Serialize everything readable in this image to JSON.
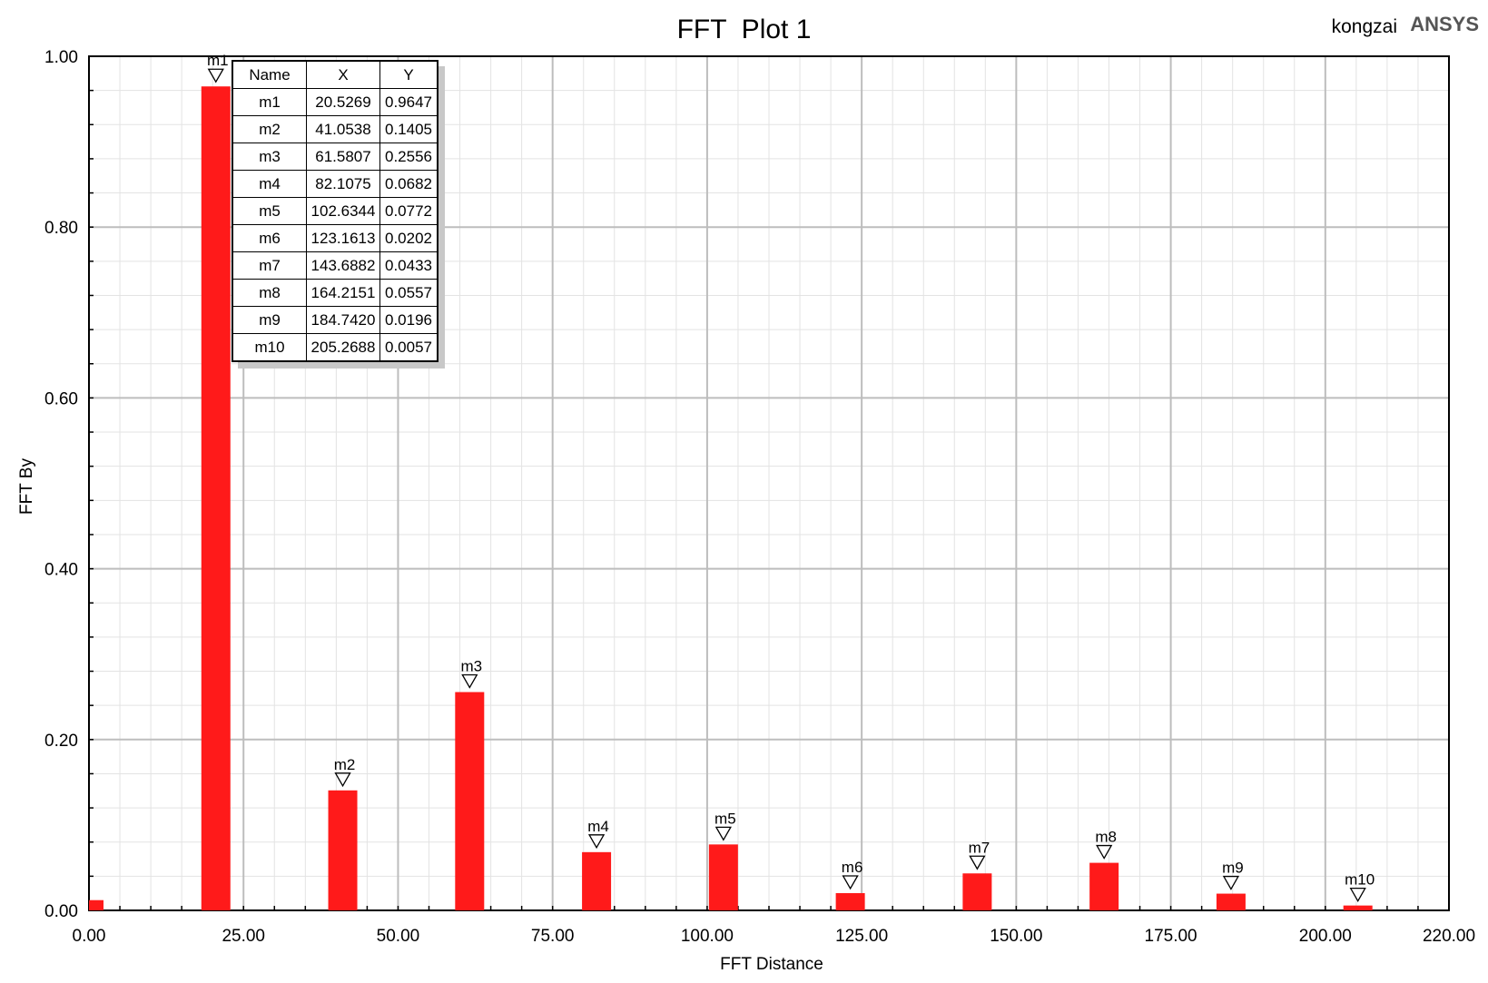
{
  "header": {
    "title": "FFT  Plot 1",
    "user": "kongzai",
    "brand": "ANSYS"
  },
  "colors": {
    "bar": "#ff1a1a",
    "grid_major": "#bdbdbd",
    "grid_minor": "#e3e3e3"
  },
  "marker_table": {
    "headers": [
      "Name",
      "X",
      "Y"
    ],
    "rows": [
      [
        "m1",
        "20.5269",
        "0.9647"
      ],
      [
        "m2",
        "41.0538",
        "0.1405"
      ],
      [
        "m3",
        "61.5807",
        "0.2556"
      ],
      [
        "m4",
        "82.1075",
        "0.0682"
      ],
      [
        "m5",
        "102.6344",
        "0.0772"
      ],
      [
        "m6",
        "123.1613",
        "0.0202"
      ],
      [
        "m7",
        "143.6882",
        "0.0433"
      ],
      [
        "m8",
        "164.2151",
        "0.0557"
      ],
      [
        "m9",
        "184.7420",
        "0.0196"
      ],
      [
        "m10",
        "205.2688",
        "0.0057"
      ]
    ]
  },
  "chart_data": {
    "type": "bar",
    "title": "FFT  Plot 1",
    "xlabel": "FFT Distance",
    "ylabel": "FFT By",
    "xlim": [
      0,
      220
    ],
    "ylim": [
      0,
      1
    ],
    "x_ticks": [
      "0.00",
      "25.00",
      "50.00",
      "75.00",
      "100.00",
      "125.00",
      "150.00",
      "175.00",
      "200.00",
      "220.00"
    ],
    "x_tick_values": [
      0,
      25,
      50,
      75,
      100,
      125,
      150,
      175,
      200,
      220
    ],
    "y_ticks": [
      "0.00",
      "0.20",
      "0.40",
      "0.60",
      "0.80",
      "1.00"
    ],
    "y_tick_values": [
      0,
      0.2,
      0.4,
      0.6,
      0.8,
      1.0
    ],
    "grid": true,
    "bars": [
      {
        "x": 0.0,
        "y": 0.012
      },
      {
        "x": 20.5269,
        "y": 0.9647,
        "marker": "m1"
      },
      {
        "x": 41.0538,
        "y": 0.1405,
        "marker": "m2"
      },
      {
        "x": 61.5807,
        "y": 0.2556,
        "marker": "m3"
      },
      {
        "x": 82.1075,
        "y": 0.0682,
        "marker": "m4"
      },
      {
        "x": 102.6344,
        "y": 0.0772,
        "marker": "m5"
      },
      {
        "x": 123.1613,
        "y": 0.0202,
        "marker": "m6"
      },
      {
        "x": 143.6882,
        "y": 0.0433,
        "marker": "m7"
      },
      {
        "x": 164.2151,
        "y": 0.0557,
        "marker": "m8"
      },
      {
        "x": 184.742,
        "y": 0.0196,
        "marker": "m9"
      },
      {
        "x": 205.2688,
        "y": 0.0057,
        "marker": "m10"
      }
    ]
  }
}
